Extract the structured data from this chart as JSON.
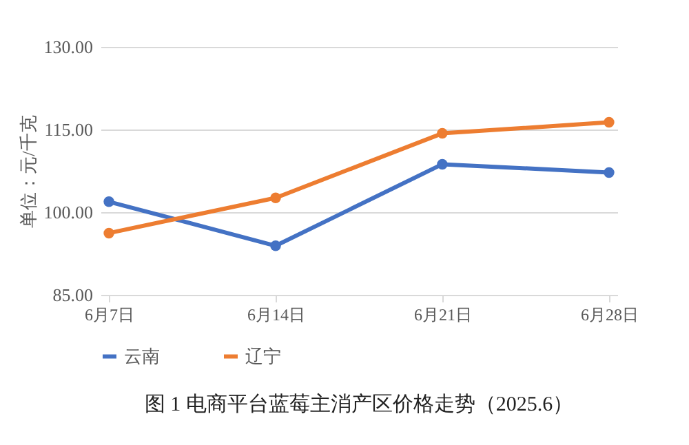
{
  "chart_data": {
    "type": "line",
    "title": "图 1 电商平台蓝莓主消产区价格走势（2025.6）",
    "ylabel": "单位：元/千克",
    "categories": [
      "6月7日",
      "6月14日",
      "6月21日",
      "6月28日"
    ],
    "series": [
      {
        "name": "云南",
        "color": "#4472c4",
        "values": [
          101.9,
          93.9,
          108.7,
          107.2
        ]
      },
      {
        "name": "辽宁",
        "color": "#ed7d31",
        "values": [
          96.2,
          102.6,
          114.3,
          116.3
        ]
      }
    ],
    "ylim": [
      85,
      130
    ],
    "yticks": [
      {
        "value": 85,
        "label": "85.00"
      },
      {
        "value": 100,
        "label": "100.00"
      },
      {
        "value": 115,
        "label": "115.00"
      },
      {
        "value": 130,
        "label": "130.00"
      }
    ],
    "grid": "y",
    "legend": "bottom",
    "marker": "circle",
    "line_style": "solid"
  }
}
